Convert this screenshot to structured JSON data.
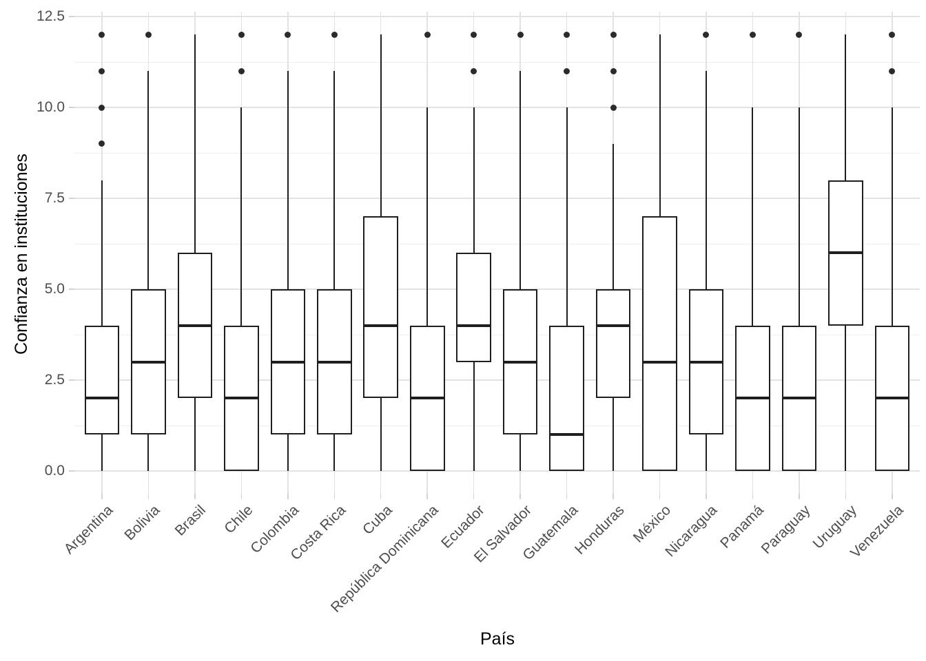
{
  "axes": {
    "x_title": "País",
    "y_title": "Confianza en instituciones"
  },
  "colors": {
    "background": "#ffffff",
    "box_stroke": "#1f1f1f",
    "outlier_dot": "#2b2b2b",
    "grid_major": "#e2e2e2",
    "grid_minor": "#efefef",
    "tick_mark": "#d2d2d2",
    "tick_label": "#4d4d4d",
    "axis_title": "#000000"
  },
  "chart_data": {
    "type": "boxplot",
    "title": "",
    "xlabel": "País",
    "ylabel": "Confianza en instituciones",
    "ylim": [
      -0.625,
      12.625
    ],
    "y_major_breaks": [
      0,
      2.5,
      5,
      7.5,
      10,
      12.5
    ],
    "y_minor_breaks": [
      1.25,
      3.75,
      6.25,
      8.75,
      11.25
    ],
    "y_tick_labels": [
      "0.0",
      "2.5",
      "5.0",
      "7.5",
      "10.0",
      "12.5"
    ],
    "grid": true,
    "legend": "none",
    "categories": [
      "Argentina",
      "Bolivia",
      "Brasil",
      "Chile",
      "Colombia",
      "Costa Rica",
      "Cuba",
      "República Dominicana",
      "Ecuador",
      "El Salvador",
      "Guatemala",
      "Honduras",
      "México",
      "Nicaragua",
      "Panamá",
      "Paraguay",
      "Uruguay",
      "Venezuela"
    ],
    "series": [
      {
        "name": "Argentina",
        "min": 0,
        "q1": 1,
        "median": 2,
        "q3": 4,
        "max": 8,
        "outliers": [
          9,
          10,
          11,
          12
        ]
      },
      {
        "name": "Bolivia",
        "min": 0,
        "q1": 1,
        "median": 3,
        "q3": 5,
        "max": 11,
        "outliers": [
          12
        ]
      },
      {
        "name": "Brasil",
        "min": 0,
        "q1": 2,
        "median": 4,
        "q3": 6,
        "max": 12,
        "outliers": []
      },
      {
        "name": "Chile",
        "min": 0,
        "q1": 0,
        "median": 2,
        "q3": 4,
        "max": 10,
        "outliers": [
          11,
          12
        ]
      },
      {
        "name": "Colombia",
        "min": 0,
        "q1": 1,
        "median": 3,
        "q3": 5,
        "max": 11,
        "outliers": [
          12
        ]
      },
      {
        "name": "Costa Rica",
        "min": 0,
        "q1": 1,
        "median": 3,
        "q3": 5,
        "max": 11,
        "outliers": [
          12
        ]
      },
      {
        "name": "Cuba",
        "min": 0,
        "q1": 2,
        "median": 4,
        "q3": 7,
        "max": 12,
        "outliers": []
      },
      {
        "name": "República Dominicana",
        "min": 0,
        "q1": 0,
        "median": 2,
        "q3": 4,
        "max": 10,
        "outliers": [
          12
        ]
      },
      {
        "name": "Ecuador",
        "min": 0,
        "q1": 3,
        "median": 4,
        "q3": 6,
        "max": 10,
        "outliers": [
          11,
          12
        ]
      },
      {
        "name": "El Salvador",
        "min": 0,
        "q1": 1,
        "median": 3,
        "q3": 5,
        "max": 11,
        "outliers": [
          12
        ]
      },
      {
        "name": "Guatemala",
        "min": 0,
        "q1": 0,
        "median": 1,
        "q3": 4,
        "max": 10,
        "outliers": [
          11,
          12
        ]
      },
      {
        "name": "Honduras",
        "min": 0,
        "q1": 2,
        "median": 4,
        "q3": 5,
        "max": 9,
        "outliers": [
          10,
          11,
          12
        ]
      },
      {
        "name": "México",
        "min": 0,
        "q1": 0,
        "median": 3,
        "q3": 7,
        "max": 12,
        "outliers": []
      },
      {
        "name": "Nicaragua",
        "min": 0,
        "q1": 1,
        "median": 3,
        "q3": 5,
        "max": 11,
        "outliers": [
          12
        ]
      },
      {
        "name": "Panamá",
        "min": 0,
        "q1": 0,
        "median": 2,
        "q3": 4,
        "max": 10,
        "outliers": [
          12
        ]
      },
      {
        "name": "Paraguay",
        "min": 0,
        "q1": 0,
        "median": 2,
        "q3": 4,
        "max": 10,
        "outliers": [
          12
        ]
      },
      {
        "name": "Uruguay",
        "min": 0,
        "q1": 4,
        "median": 6,
        "q3": 8,
        "max": 12,
        "outliers": []
      },
      {
        "name": "Venezuela",
        "min": 0,
        "q1": 0,
        "median": 2,
        "q3": 4,
        "max": 10,
        "outliers": [
          11,
          12
        ]
      }
    ]
  }
}
